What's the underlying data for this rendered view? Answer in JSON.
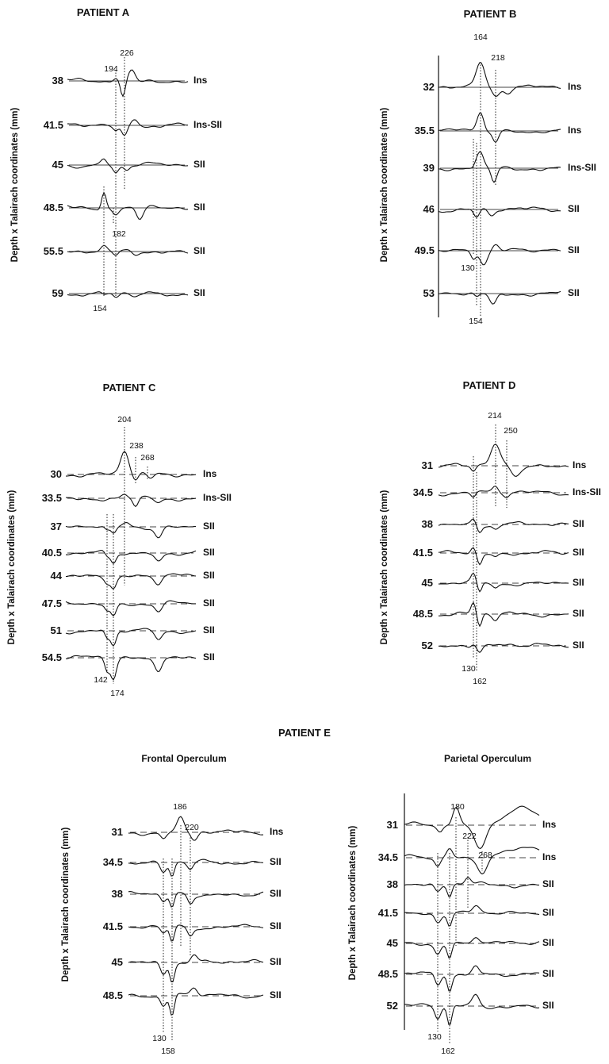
{
  "figure_title_e": "PATIENT E",
  "chart_data": [
    {
      "type": "line",
      "title": "PATIENT A",
      "subtitle": "",
      "ylabel": "Depth x Talairach coordinates (mm)",
      "baseline": "solid",
      "axis_line": false,
      "channels": [
        {
          "depth": "38",
          "region": "Ins"
        },
        {
          "depth": "41.5",
          "region": "Ins-SII"
        },
        {
          "depth": "45",
          "region": "SII"
        },
        {
          "depth": "48.5",
          "region": "SII"
        },
        {
          "depth": "55.5",
          "region": "SII"
        },
        {
          "depth": "59",
          "region": "SII"
        }
      ],
      "latency_markers": [
        {
          "label": "194",
          "pos": "top"
        },
        {
          "label": "226",
          "pos": "top"
        },
        {
          "label": "182",
          "pos": "middle"
        },
        {
          "label": "154",
          "pos": "bottom"
        }
      ]
    },
    {
      "type": "line",
      "title": "PATIENT B",
      "subtitle": "",
      "ylabel": "Depth x Talairach coordinates (mm)",
      "baseline": "solid",
      "axis_line": true,
      "channels": [
        {
          "depth": "32",
          "region": "Ins"
        },
        {
          "depth": "35.5",
          "region": "Ins"
        },
        {
          "depth": "39",
          "region": "Ins-SII"
        },
        {
          "depth": "46",
          "region": "SII"
        },
        {
          "depth": "49.5",
          "region": "SII"
        },
        {
          "depth": "53",
          "region": "SII"
        }
      ],
      "latency_markers": [
        {
          "label": "164",
          "pos": "top"
        },
        {
          "label": "218",
          "pos": "top"
        },
        {
          "label": "130",
          "pos": "middle"
        },
        {
          "label": "154",
          "pos": "bottom"
        }
      ]
    },
    {
      "type": "line",
      "title": "PATIENT C",
      "subtitle": "",
      "ylabel": "Depth x Talairach coordinates (mm)",
      "baseline": "dashed",
      "axis_line": false,
      "channels": [
        {
          "depth": "30",
          "region": "Ins"
        },
        {
          "depth": "33.5",
          "region": "Ins-SII"
        },
        {
          "depth": "37",
          "region": "SII"
        },
        {
          "depth": "40.5",
          "region": "SII"
        },
        {
          "depth": "44",
          "region": "SII"
        },
        {
          "depth": "47.5",
          "region": "SII"
        },
        {
          "depth": "51",
          "region": "SII"
        },
        {
          "depth": "54.5",
          "region": "SII"
        }
      ],
      "latency_markers": [
        {
          "label": "204",
          "pos": "top"
        },
        {
          "label": "238",
          "pos": "top"
        },
        {
          "label": "268",
          "pos": "top"
        },
        {
          "label": "142",
          "pos": "bottom"
        },
        {
          "label": "174",
          "pos": "bottom"
        }
      ]
    },
    {
      "type": "line",
      "title": "PATIENT D",
      "subtitle": "",
      "ylabel": "Depth x Talairach coordinates (mm)",
      "baseline": "dashed",
      "axis_line": false,
      "channels": [
        {
          "depth": "31",
          "region": "Ins"
        },
        {
          "depth": "34.5",
          "region": "Ins-SII"
        },
        {
          "depth": "38",
          "region": "SII"
        },
        {
          "depth": "41.5",
          "region": "SII"
        },
        {
          "depth": "45",
          "region": "SII"
        },
        {
          "depth": "48.5",
          "region": "SII"
        },
        {
          "depth": "52",
          "region": "SII"
        }
      ],
      "latency_markers": [
        {
          "label": "214",
          "pos": "top"
        },
        {
          "label": "250",
          "pos": "top"
        },
        {
          "label": "130",
          "pos": "bottom"
        },
        {
          "label": "162",
          "pos": "bottom"
        }
      ]
    },
    {
      "type": "line",
      "title": "",
      "subtitle": "Frontal Operculum",
      "ylabel": "Depth x Talairach coordinates (mm)",
      "baseline": "dashed",
      "axis_line": false,
      "channels": [
        {
          "depth": "31",
          "region": "Ins"
        },
        {
          "depth": "34.5",
          "region": "SII"
        },
        {
          "depth": "38",
          "region": "SII"
        },
        {
          "depth": "41.5",
          "region": "SII"
        },
        {
          "depth": "45",
          "region": "SII"
        },
        {
          "depth": "48.5",
          "region": "SII"
        }
      ],
      "latency_markers": [
        {
          "label": "186",
          "pos": "top"
        },
        {
          "label": "220",
          "pos": "top"
        },
        {
          "label": "130",
          "pos": "bottom"
        },
        {
          "label": "158",
          "pos": "bottom"
        }
      ]
    },
    {
      "type": "line",
      "title": "",
      "subtitle": "Parietal Operculum",
      "ylabel": "Depth x Talairach coordinates (mm)",
      "baseline": "dashed",
      "axis_line": true,
      "channels": [
        {
          "depth": "31",
          "region": "Ins"
        },
        {
          "depth": "34.5",
          "region": "Ins"
        },
        {
          "depth": "38",
          "region": "SII"
        },
        {
          "depth": "41.5",
          "region": "SII"
        },
        {
          "depth": "45",
          "region": "SII"
        },
        {
          "depth": "48.5",
          "region": "SII"
        },
        {
          "depth": "52",
          "region": "SII"
        }
      ],
      "latency_markers": [
        {
          "label": "180",
          "pos": "top"
        },
        {
          "label": "222",
          "pos": "top"
        },
        {
          "label": "268",
          "pos": "top"
        },
        {
          "label": "130",
          "pos": "bottom"
        },
        {
          "label": "162",
          "pos": "bottom"
        }
      ]
    }
  ]
}
